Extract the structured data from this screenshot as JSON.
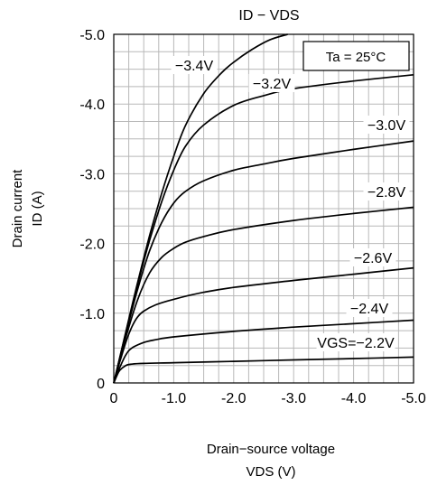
{
  "chart_data": {
    "type": "line",
    "title": "ID − VDS",
    "xlabel_line1": "Drain−source voltage",
    "xlabel_line2": "VDS (V)",
    "ylabel_line1": "Drain current",
    "ylabel_line2": "ID (A)",
    "annotation": "Ta = 25°C",
    "x_ticks": [
      "0",
      "-1.0",
      "-2.0",
      "-3.0",
      "-4.0",
      "-5.0"
    ],
    "y_ticks": [
      "0",
      "-1.0",
      "-2.0",
      "-3.0",
      "-4.0",
      "-5.0"
    ],
    "xlim": [
      0,
      -5.0
    ],
    "ylim": [
      0,
      -5.0
    ],
    "grid": true,
    "series": [
      {
        "name": "VGS=−2.2V",
        "x": [
          0,
          -0.05,
          -0.1,
          -0.2,
          -0.3,
          -0.5,
          -1.0,
          -2.0,
          -3.0,
          -4.0,
          -5.0
        ],
        "y": [
          0,
          -0.1,
          -0.18,
          -0.25,
          -0.27,
          -0.28,
          -0.29,
          -0.31,
          -0.33,
          -0.35,
          -0.37
        ]
      },
      {
        "name": "−2.4V",
        "x": [
          0,
          -0.1,
          -0.2,
          -0.3,
          -0.5,
          -0.7,
          -1.0,
          -2.0,
          -3.0,
          -4.0,
          -5.0
        ],
        "y": [
          0,
          -0.22,
          -0.4,
          -0.5,
          -0.58,
          -0.62,
          -0.66,
          -0.74,
          -0.8,
          -0.85,
          -0.9
        ]
      },
      {
        "name": "−2.6V",
        "x": [
          0,
          -0.1,
          -0.2,
          -0.3,
          -0.4,
          -0.5,
          -0.7,
          -1.0,
          -1.5,
          -2.0,
          -3.0,
          -4.0,
          -5.0
        ],
        "y": [
          0,
          -0.3,
          -0.58,
          -0.8,
          -0.95,
          -1.03,
          -1.12,
          -1.2,
          -1.3,
          -1.37,
          -1.47,
          -1.56,
          -1.65
        ]
      },
      {
        "name": "−2.8V",
        "x": [
          0,
          -0.2,
          -0.4,
          -0.6,
          -0.8,
          -1.0,
          -1.2,
          -1.5,
          -2.0,
          -3.0,
          -4.0,
          -5.0
        ],
        "y": [
          0,
          -0.65,
          -1.2,
          -1.58,
          -1.8,
          -1.93,
          -2.02,
          -2.1,
          -2.2,
          -2.33,
          -2.43,
          -2.52
        ]
      },
      {
        "name": "−3.0V",
        "x": [
          0,
          -0.2,
          -0.4,
          -0.6,
          -0.8,
          -1.0,
          -1.2,
          -1.5,
          -2.0,
          -2.5,
          -3.0,
          -4.0,
          -5.0
        ],
        "y": [
          0,
          -0.7,
          -1.35,
          -1.9,
          -2.3,
          -2.58,
          -2.75,
          -2.9,
          -3.05,
          -3.14,
          -3.22,
          -3.35,
          -3.47
        ]
      },
      {
        "name": "−3.2V",
        "x": [
          0,
          -0.2,
          -0.4,
          -0.6,
          -0.8,
          -1.0,
          -1.2,
          -1.5,
          -2.0,
          -2.5,
          -3.0,
          -4.0,
          -5.0
        ],
        "y": [
          0,
          -0.72,
          -1.42,
          -2.05,
          -2.6,
          -3.05,
          -3.4,
          -3.7,
          -3.98,
          -4.12,
          -4.22,
          -4.33,
          -4.42
        ]
      },
      {
        "name": "−3.4V",
        "x": [
          0,
          -0.2,
          -0.4,
          -0.6,
          -0.8,
          -1.0,
          -1.2,
          -1.5,
          -1.8,
          -2.0,
          -2.3,
          -2.6,
          -2.9
        ],
        "y": [
          0,
          -0.73,
          -1.45,
          -2.12,
          -2.72,
          -3.25,
          -3.7,
          -4.15,
          -4.45,
          -4.6,
          -4.78,
          -4.92,
          -5.0
        ]
      }
    ]
  }
}
